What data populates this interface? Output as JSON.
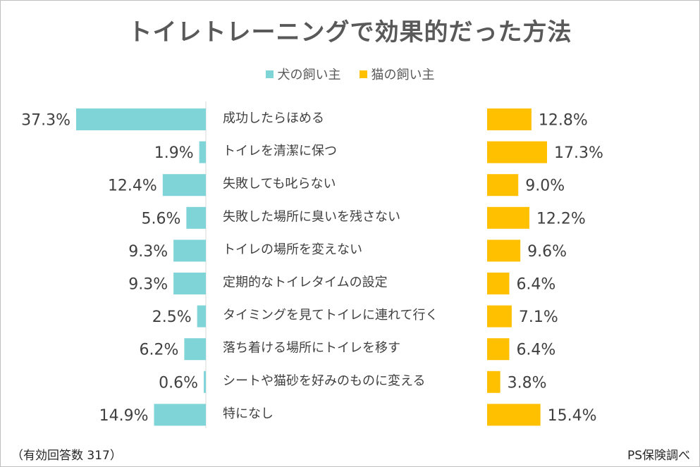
{
  "chart_data": {
    "type": "bar",
    "title": "トイレトレーニングで効果的だった方法",
    "legend_position": "top-center",
    "categories": [
      "成功したらほめる",
      "トイレを清潔に保つ",
      "失敗しても叱らない",
      "失敗した場所に臭いを残さない",
      "トイレの場所を変えない",
      "定期的なトイレタイムの設定",
      "タイミングを見てトイレに連れて行く",
      "落ち着ける場所にトイレを移す",
      "シートや猫砂を好みのものに変える",
      "特になし"
    ],
    "series": [
      {
        "name": "犬の飼い主",
        "color": "#7fd4d8",
        "values": [
          37.3,
          1.9,
          12.4,
          5.6,
          9.3,
          9.3,
          2.5,
          6.2,
          0.6,
          14.9
        ],
        "labels": [
          "37.3%",
          "1.9%",
          "12.4%",
          "5.6%",
          "9.3%",
          "9.3%",
          "2.5%",
          "6.2%",
          "0.6%",
          "14.9%"
        ]
      },
      {
        "name": "猫の飼い主",
        "color": "#ffc000",
        "values": [
          12.8,
          17.3,
          9.0,
          12.2,
          9.6,
          6.4,
          7.1,
          6.4,
          3.8,
          15.4
        ],
        "labels": [
          "12.8%",
          "17.3%",
          "9.0%",
          "12.2%",
          "9.6%",
          "6.4%",
          "7.1%",
          "6.4%",
          "3.8%",
          "15.4%"
        ]
      }
    ]
  },
  "footer": {
    "respondents": "（有効回答数 317）",
    "source": "PS保険調べ"
  }
}
